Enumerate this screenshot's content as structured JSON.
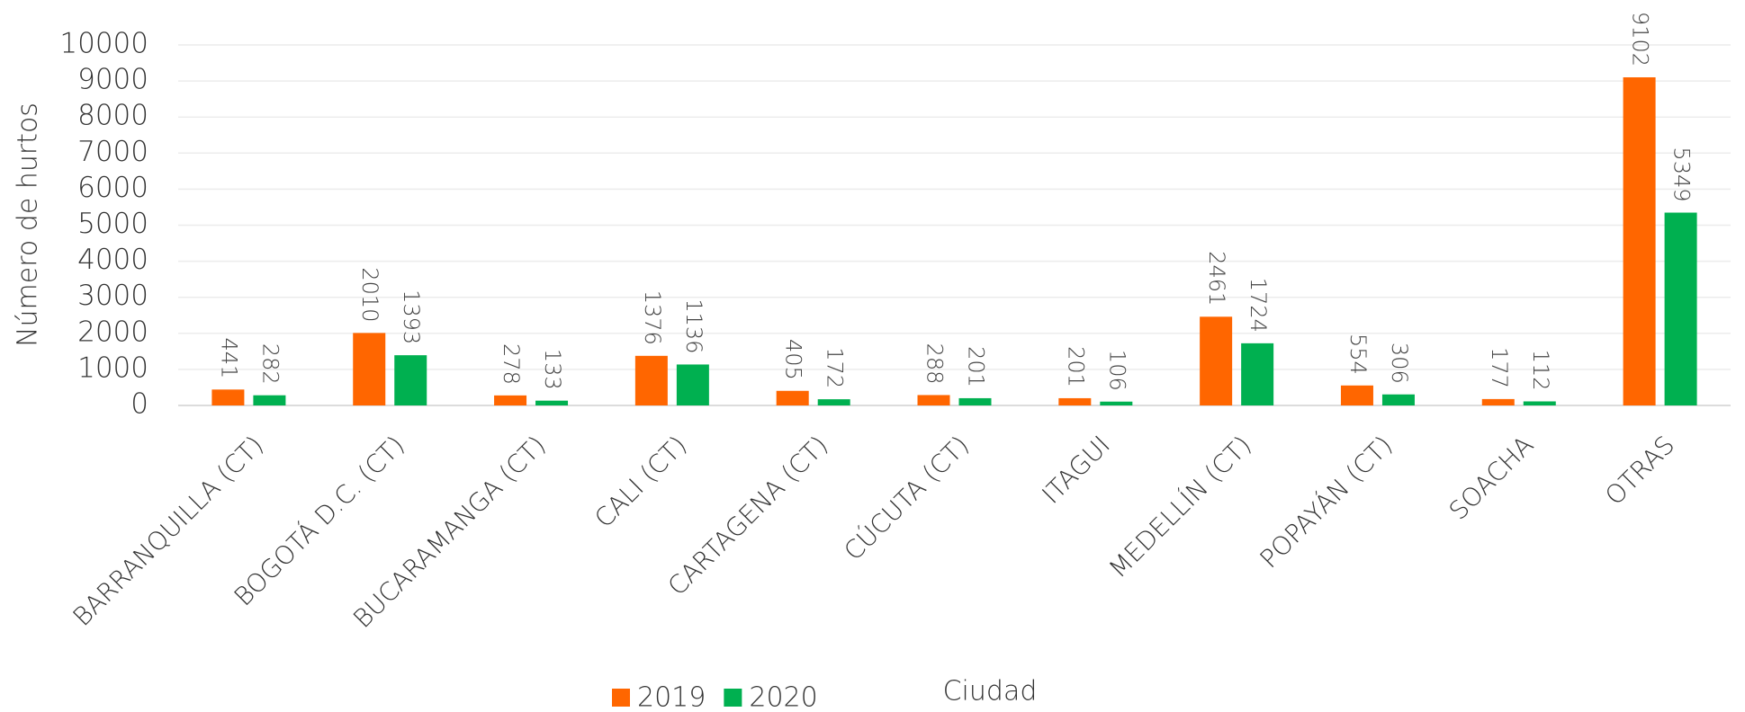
{
  "chart_data": {
    "type": "bar",
    "y_label": "Número de hurtos",
    "x_label": "Ciudad",
    "categories": [
      "BARRANQUILLA (CT)",
      "BOGOTÁ D.C. (CT)",
      "BUCARAMANGA (CT)",
      "CALI (CT)",
      "CARTAGENA (CT)",
      "CÚCUTA (CT)",
      "ITAGUI",
      "MEDELLÍN (CT)",
      "POPAYÁN (CT)",
      "SOACHA",
      "OTRAS"
    ],
    "series": [
      {
        "name": "2019",
        "color": "#ff6600",
        "values": [
          441,
          2010,
          278,
          1376,
          405,
          288,
          201,
          2461,
          554,
          177,
          9102
        ]
      },
      {
        "name": "2020",
        "color": "#00b050",
        "values": [
          282,
          1393,
          133,
          1136,
          172,
          201,
          106,
          1724,
          306,
          112,
          5349
        ]
      }
    ],
    "ylim": [
      0,
      10000
    ],
    "yticks": [
      0,
      1000,
      2000,
      3000,
      4000,
      5000,
      6000,
      7000,
      8000,
      9000,
      10000
    ],
    "grid": true,
    "legend": "bottom"
  }
}
